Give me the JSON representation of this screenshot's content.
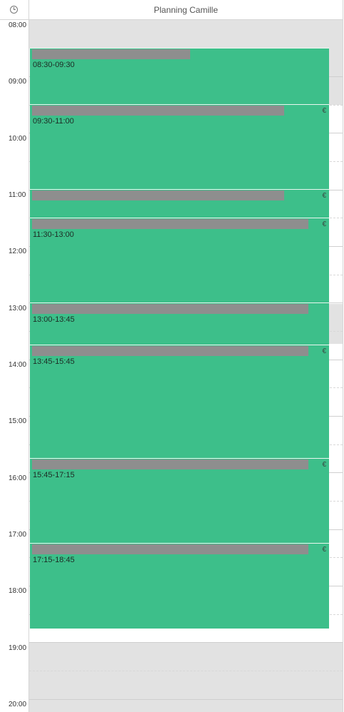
{
  "header": {
    "title": "Planning Camille",
    "icon": "clock-icon"
  },
  "times": [
    "08:00",
    "09:00",
    "10:00",
    "11:00",
    "12:00",
    "13:00",
    "14:00",
    "15:00",
    "16:00",
    "17:00",
    "18:00",
    "19:00",
    "20:00"
  ],
  "events": [
    {
      "time": "08:30-09:30",
      "euro": ""
    },
    {
      "time": "09:30-11:00",
      "euro": "€"
    },
    {
      "time": "",
      "euro": "€"
    },
    {
      "time": "11:30-13:00",
      "euro": "€"
    },
    {
      "time": "13:00-13:45",
      "euro": ""
    },
    {
      "time": "13:45-15:45",
      "euro": "€"
    },
    {
      "time": "15:45-17:15",
      "euro": "€"
    },
    {
      "time": "17:15-18:45",
      "euro": "€"
    }
  ],
  "colors": {
    "event": "#3dbf8a",
    "blocked": "#e2e2e2",
    "bar": "#8e8e8e"
  }
}
